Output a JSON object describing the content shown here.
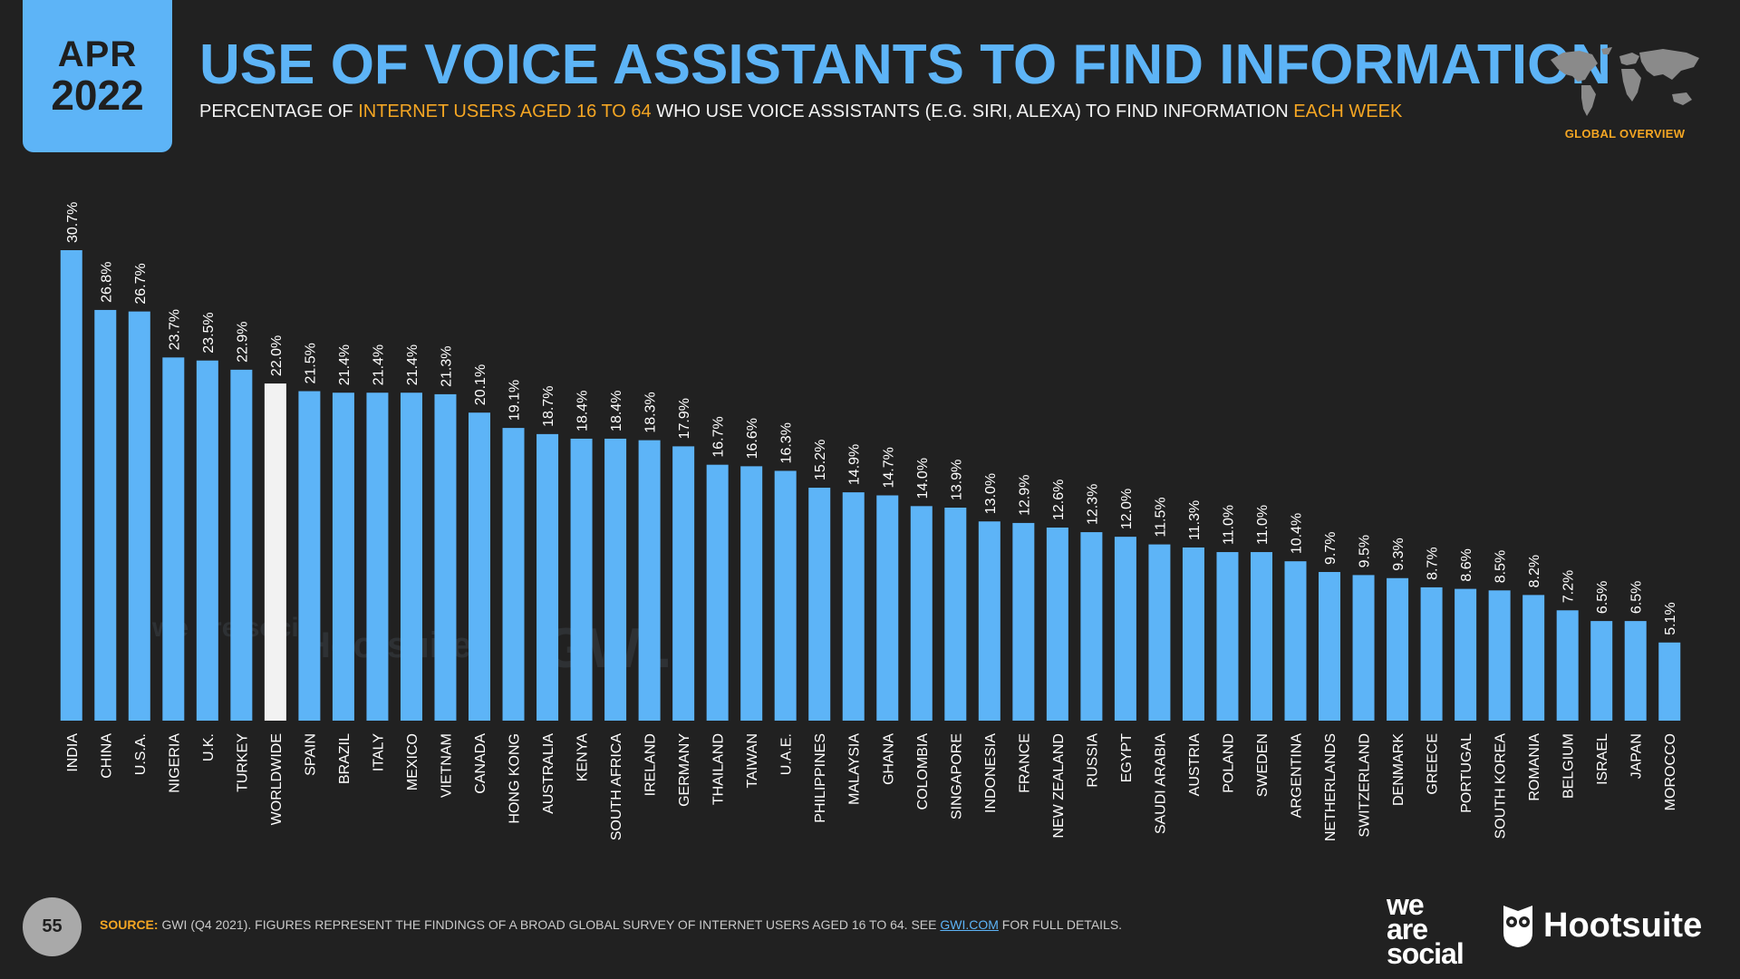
{
  "header": {
    "date_month": "APR",
    "date_year": "2022",
    "title": "USE OF VOICE ASSISTANTS TO FIND INFORMATION",
    "subtitle_1": "PERCENTAGE OF ",
    "subtitle_2": "INTERNET USERS AGED 16 TO 64",
    "subtitle_3": " WHO USE VOICE ASSISTANTS (E.G. SIRI, ALEXA) TO FIND INFORMATION ",
    "subtitle_4": "EACH WEEK",
    "global_label": "GLOBAL OVERVIEW"
  },
  "watermarks": {
    "we_are_social": "we are social",
    "hootsuite": "Hootsuite",
    "gwi": "GWI."
  },
  "footer": {
    "page_number": "55",
    "source_label": "SOURCE:",
    "source_text_1": " GWI (Q4 2021). FIGURES REPRESENT THE FINDINGS OF A BROAD GLOBAL SURVEY OF INTERNET USERS AGED 16 TO 64. SEE ",
    "source_link": "GWI.COM",
    "source_text_2": " FOR FULL DETAILS.",
    "logo_we": "we",
    "logo_are": "are",
    "logo_social": "social",
    "logo_hootsuite": "Hootsuite"
  },
  "colors": {
    "bar": "#5db4f7",
    "highlight_bar": "#f2f2f2",
    "accent": "#f5a623",
    "background": "#212121"
  },
  "chart_data": {
    "type": "bar",
    "highlight_category": "WORLDWIDE",
    "ylim": [
      0,
      32
    ],
    "categories": [
      "INDIA",
      "CHINA",
      "U.S.A.",
      "NIGERIA",
      "U.K.",
      "TURKEY",
      "WORLDWIDE",
      "SPAIN",
      "BRAZIL",
      "ITALY",
      "MEXICO",
      "VIETNAM",
      "CANADA",
      "HONG KONG",
      "AUSTRALIA",
      "KENYA",
      "SOUTH AFRICA",
      "IRELAND",
      "GERMANY",
      "THAILAND",
      "TAIWAN",
      "U.A.E.",
      "PHILIPPINES",
      "MALAYSIA",
      "GHANA",
      "COLOMBIA",
      "SINGAPORE",
      "INDONESIA",
      "FRANCE",
      "NEW ZEALAND",
      "RUSSIA",
      "EGYPT",
      "SAUDI ARABIA",
      "AUSTRIA",
      "POLAND",
      "SWEDEN",
      "ARGENTINA",
      "NETHERLANDS",
      "SWITZERLAND",
      "DENMARK",
      "GREECE",
      "PORTUGAL",
      "SOUTH KOREA",
      "ROMANIA",
      "BELGIUM",
      "ISRAEL",
      "JAPAN",
      "MOROCCO"
    ],
    "values": [
      30.7,
      26.8,
      26.7,
      23.7,
      23.5,
      22.9,
      22.0,
      21.5,
      21.4,
      21.4,
      21.4,
      21.3,
      20.1,
      19.1,
      18.7,
      18.4,
      18.4,
      18.3,
      17.9,
      16.7,
      16.6,
      16.3,
      15.2,
      14.9,
      14.7,
      14.0,
      13.9,
      13.0,
      12.9,
      12.6,
      12.3,
      12.0,
      11.5,
      11.3,
      11.0,
      11.0,
      10.4,
      9.7,
      9.5,
      9.3,
      8.7,
      8.6,
      8.5,
      8.2,
      7.2,
      6.5,
      6.5,
      5.1
    ],
    "labels": [
      "30.7%",
      "26.8%",
      "26.7%",
      "23.7%",
      "23.5%",
      "22.9%",
      "22.0%",
      "21.5%",
      "21.4%",
      "21.4%",
      "21.4%",
      "21.3%",
      "20.1%",
      "19.1%",
      "18.7%",
      "18.4%",
      "18.4%",
      "18.3%",
      "17.9%",
      "16.7%",
      "16.6%",
      "16.3%",
      "15.2%",
      "14.9%",
      "14.7%",
      "14.0%",
      "13.9%",
      "13.0%",
      "12.9%",
      "12.6%",
      "12.3%",
      "12.0%",
      "11.5%",
      "11.3%",
      "11.0%",
      "11.0%",
      "10.4%",
      "9.7%",
      "9.5%",
      "9.3%",
      "8.7%",
      "8.6%",
      "8.5%",
      "8.2%",
      "7.2%",
      "6.5%",
      "6.5%",
      "5.1%"
    ]
  }
}
